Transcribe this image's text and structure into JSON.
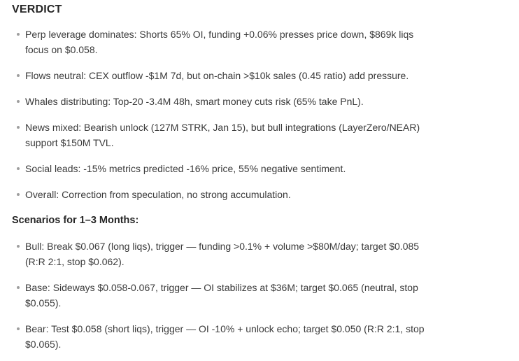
{
  "theme": {
    "background": "#ffffff",
    "heading_color": "#262626",
    "body_text_color": "#3a3a3a",
    "bullet_color": "#9e9e9e"
  },
  "verdict": {
    "title": "VERDICT",
    "bullets": [
      "Perp leverage dominates: Shorts 65% OI, funding +0.06% presses price down, $869k liqs\nfocus on $0.058.",
      "Flows neutral: CEX outflow -$1M 7d, but on-chain >$10k sales (0.45 ratio) add pressure.",
      "Whales distributing: Top-20 -3.4M 48h, smart money cuts risk (65% take PnL).",
      "News mixed: Bearish unlock (127M STRK, Jan 15), but bull integrations (LayerZero/NEAR)\nsupport $150M TVL.",
      "Social leads: -15% metrics predicted -16% price, 55% negative sentiment.",
      "Overall: Correction from speculation, no strong accumulation."
    ]
  },
  "scenarios": {
    "heading": "Scenarios for 1–3 Months:",
    "bullets": [
      "Bull: Break $0.067 (long liqs), trigger — funding >0.1% + volume >$80M/day; target $0.085\n(R:R 2:1, stop $0.062).",
      "Base: Sideways $0.058-0.067, trigger — OI stabilizes at $36M; target $0.065 (neutral, stop\n$0.055).",
      "Bear: Test $0.058 (short liqs), trigger — OI -10% + unlock echo; target $0.050 (R:R 2:1, stop\n$0.065)."
    ]
  }
}
